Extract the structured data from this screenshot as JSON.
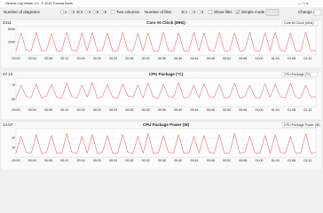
{
  "window_title": "Generic Log Viewer 1.0 - © 2019 Thomas Barth",
  "toolbar": {
    "diagrams_label": "Number of diagrams",
    "diagram_options": [
      "1",
      "2",
      "3",
      "4",
      "5",
      "6"
    ],
    "two_columns": "Two columns",
    "files_label": "Number of files",
    "file_options": [
      "1",
      "2",
      "3"
    ],
    "show_files": "Show files",
    "simple_mode": "Simple mode",
    "change_all": "Change all"
  },
  "x_labels": [
    "00:00",
    "00:04",
    "00:08",
    "00:12",
    "00:16",
    "00:20",
    "00:24",
    "00:28",
    "00:32",
    "00:36",
    "00:40",
    "00:44",
    "00:48",
    "00:52",
    "00:56",
    "01:00",
    "01:04",
    "01:08",
    "01:12"
  ],
  "chart_data": [
    {
      "type": "line",
      "title": "Core #0 Clock (MHz)",
      "current": "2411",
      "color": "#e8474c",
      "ylim": [
        0,
        5500
      ],
      "yticks": [
        2500,
        5000
      ],
      "grid": true,
      "values": [
        800,
        4300,
        900,
        800,
        4400,
        800,
        900,
        4200,
        800,
        800,
        4400,
        900,
        800,
        4300,
        800,
        4400,
        800,
        900,
        4300,
        800,
        800,
        4400,
        900,
        800,
        4200,
        800,
        4300,
        800,
        800,
        4400,
        900,
        800,
        4300,
        800,
        800,
        4400,
        800,
        4300,
        900,
        800,
        4400,
        800,
        800,
        4300,
        800,
        900,
        4400,
        800,
        800,
        4300,
        800,
        4400,
        900,
        800,
        4300,
        800,
        800,
        4400,
        800,
        900
      ]
    },
    {
      "type": "line",
      "title": "CPU Package (°C)",
      "current": "47.13",
      "color": "#e8474c",
      "ylim": [
        40,
        80
      ],
      "yticks": [
        50,
        70
      ],
      "grid": true,
      "values": [
        52,
        70,
        54,
        53,
        72,
        52,
        55,
        71,
        53,
        52,
        73,
        54,
        52,
        70,
        53,
        74,
        52,
        54,
        71,
        53,
        52,
        72,
        55,
        53,
        70,
        52,
        73,
        53,
        52,
        71,
        54,
        53,
        74,
        52,
        53,
        70,
        52,
        72,
        54,
        53,
        71,
        52,
        53,
        73,
        52,
        54,
        70,
        53,
        52,
        72,
        53,
        71,
        54,
        52,
        73,
        53,
        52,
        70,
        53,
        54
      ]
    },
    {
      "type": "line",
      "title": "CPU Package Power (W)",
      "current": "14.57",
      "color": "#e8474c",
      "ylim": [
        0,
        30
      ],
      "yticks": [
        10,
        20
      ],
      "grid": true,
      "values": [
        4,
        22,
        5,
        4,
        24,
        4,
        5,
        23,
        4,
        4,
        25,
        5,
        4,
        22,
        4,
        24,
        4,
        5,
        23,
        4,
        4,
        24,
        5,
        4,
        22,
        4,
        25,
        4,
        4,
        23,
        5,
        4,
        24,
        4,
        4,
        22,
        4,
        23,
        5,
        4,
        24,
        4,
        4,
        25,
        4,
        5,
        22,
        4,
        4,
        23,
        4,
        24,
        5,
        4,
        22,
        4,
        4,
        25,
        4,
        5
      ]
    }
  ]
}
